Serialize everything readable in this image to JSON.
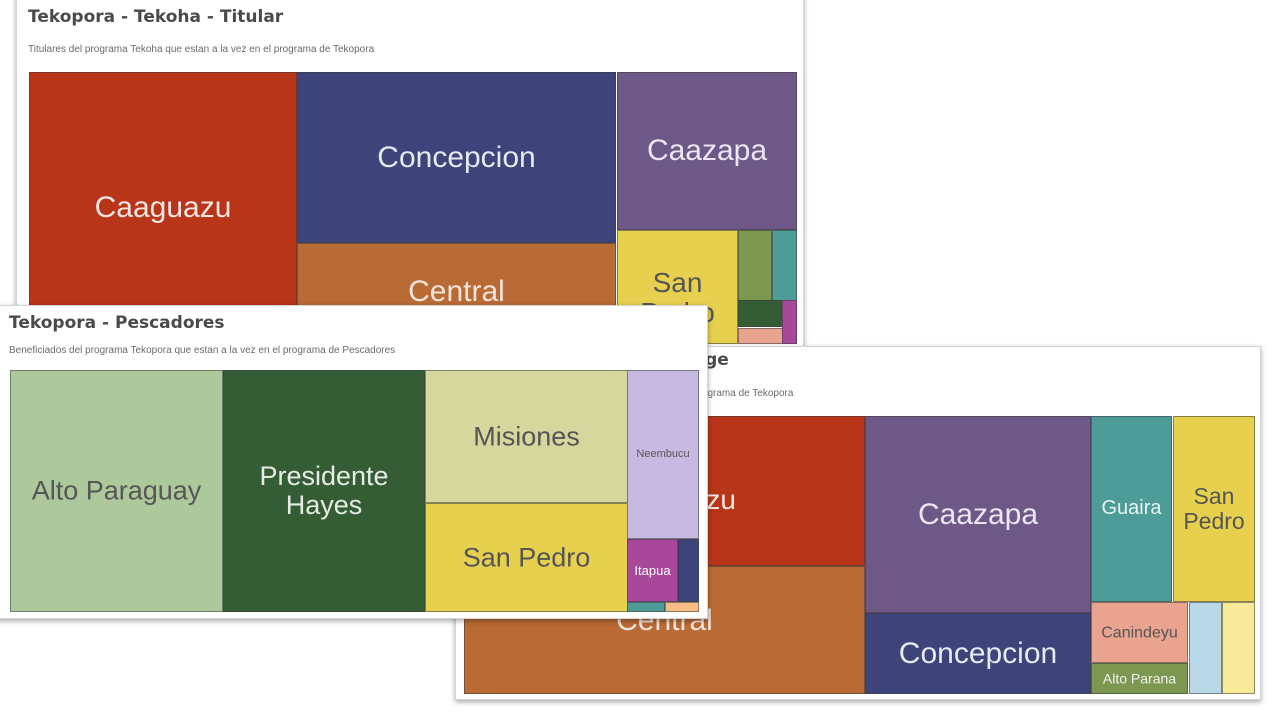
{
  "cards": {
    "tekoha": {
      "title": "Tekopora - Tekoha - Titular",
      "subtitle": "Titulares del programa Tekoha que estan a la vez en el programa de Tekopora"
    },
    "pescadores": {
      "title": "Tekopora - Pescadores",
      "subtitle": "Beneficiados del programa Tekopora que estan a la vez en el programa de Pescadores"
    },
    "conyuge": {
      "title": "uge",
      "subtitle": "programa de Tekopora"
    }
  },
  "chart_data": [
    {
      "id": "tekoha",
      "type": "treemap",
      "title": "Tekopora - Tekoha - Titular",
      "subtitle": "Titulares del programa Tekoha que estan a la vez en el programa de Tekopora",
      "tiles": [
        {
          "label": "Caaguazu",
          "color": "#b83519",
          "text_color": "#f0e6e2",
          "font_size": 30,
          "value": 35.0
        },
        {
          "label": "Concepcion",
          "color": "#3d4479",
          "text_color": "#e6e8f2",
          "font_size": 30,
          "value": 22.8
        },
        {
          "label": "Central",
          "color": "#ba6a34",
          "text_color": "#f0e4dc",
          "font_size": 30,
          "value": 18.5
        },
        {
          "label": "Caazapa",
          "color": "#6e5888",
          "text_color": "#ebe6f2",
          "font_size": 30,
          "value": 10.2
        },
        {
          "label": "San Pedro",
          "color": "#e7d04e",
          "text_color": "#555555",
          "font_size": 28,
          "value": 5.6
        },
        {
          "label": "",
          "color": "#7c9850",
          "text_color": "#ffffff",
          "font_size": 12,
          "value": 1.4
        },
        {
          "label": "",
          "color": "#4e9c98",
          "text_color": "#ffffff",
          "font_size": 12,
          "value": 1.3
        },
        {
          "label": "",
          "color": "#345d36",
          "text_color": "#ffffff",
          "font_size": 12,
          "value": 0.7
        },
        {
          "label": "",
          "color": "#e9a38e",
          "text_color": "#ffffff",
          "font_size": 12,
          "value": 0.4
        },
        {
          "label": "",
          "color": "#a7489b",
          "text_color": "#ffffff",
          "font_size": 12,
          "value": 0.3
        }
      ]
    },
    {
      "id": "pescadores",
      "type": "treemap",
      "title": "Tekopora - Pescadores",
      "subtitle": "Beneficiados del programa Tekopora que estan a la vez en el programa de Pescadores",
      "tiles": [
        {
          "label": "Alto Paraguay",
          "color": "#adc99c",
          "text_color": "#555555",
          "font_size": 27,
          "value": 30.0
        },
        {
          "label": "Presidente Hayes",
          "color": "#345d36",
          "text_color": "#e6ece4",
          "font_size": 27,
          "value": 28.0
        },
        {
          "label": "Misiones",
          "color": "#d6d79c",
          "text_color": "#555555",
          "font_size": 27,
          "value": 16.0
        },
        {
          "label": "San Pedro",
          "color": "#e7d04e",
          "text_color": "#555555",
          "font_size": 27,
          "value": 14.0
        },
        {
          "label": "Neembucu",
          "color": "#c8b9e2",
          "text_color": "#555555",
          "font_size": 11,
          "value": 6.0
        },
        {
          "label": "Itapua",
          "color": "#a7489b",
          "text_color": "#ffffff",
          "font_size": 13,
          "value": 2.0
        },
        {
          "label": "",
          "color": "#3d4479",
          "text_color": "#ffffff",
          "font_size": 12,
          "value": 1.0
        },
        {
          "label": "",
          "color": "#4e9c98",
          "text_color": "#ffffff",
          "font_size": 12,
          "value": 0.5
        },
        {
          "label": "",
          "color": "#f7bd86",
          "text_color": "#ffffff",
          "font_size": 12,
          "value": 0.5
        }
      ]
    },
    {
      "id": "conyuge",
      "type": "treemap",
      "title": "uge",
      "subtitle": "programa de Tekopora",
      "tiles": [
        {
          "label": "zu",
          "color": "#b83519",
          "text_color": "#f0e6e2",
          "font_size": 28,
          "value": 19.0
        },
        {
          "label": "Central",
          "color": "#ba6a34",
          "text_color": "#f0e4dc",
          "font_size": 30,
          "value": 29.0
        },
        {
          "label": "Caazapa",
          "color": "#6e5888",
          "text_color": "#ebe6f2",
          "font_size": 30,
          "value": 19.0
        },
        {
          "label": "Concepcion",
          "color": "#3d4479",
          "text_color": "#e6e8f2",
          "font_size": 30,
          "value": 9.3
        },
        {
          "label": "Guaira",
          "color": "#4e9c98",
          "text_color": "#eaf4f2",
          "font_size": 20,
          "value": 7.1
        },
        {
          "label": "San Pedro",
          "color": "#e7d04e",
          "text_color": "#555555",
          "font_size": 23,
          "value": 6.9
        },
        {
          "label": "Canindeyu",
          "color": "#e9a38e",
          "text_color": "#555555",
          "font_size": 16,
          "value": 2.7
        },
        {
          "label": "Alto Parana",
          "color": "#7c9850",
          "text_color": "#f2f2f2",
          "font_size": 14,
          "value": 1.5
        },
        {
          "label": "",
          "color": "#b8d8e8",
          "text_color": "#555555",
          "font_size": 12,
          "value": 1.4
        },
        {
          "label": "",
          "color": "#f8ea98",
          "text_color": "#555555",
          "font_size": 12,
          "value": 1.4
        }
      ]
    }
  ]
}
